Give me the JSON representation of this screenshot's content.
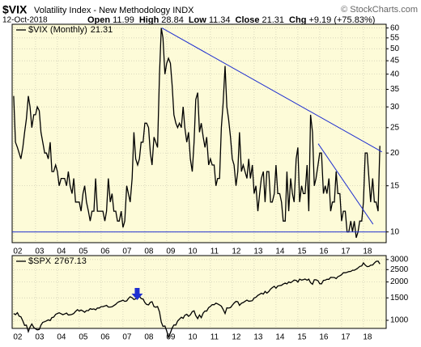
{
  "header": {
    "symbol": "$VIX",
    "name": "Volatility Index - New Methodology INDX",
    "copyright": "© StockCharts.com",
    "date": "12-Oct-2018",
    "quote": [
      {
        "label": "Open",
        "value": 11.99
      },
      {
        "label": "High",
        "value": 28.84
      },
      {
        "label": "Low",
        "value": 11.34
      },
      {
        "label": "Close",
        "value": 21.31
      },
      {
        "label": "Chg",
        "value": "+9.19 (+75.83%)"
      }
    ]
  },
  "chart_data": {
    "type": "line",
    "log_scale": true,
    "grid": true,
    "xlim": [
      2001.93,
      2019.04
    ],
    "xticks": [
      {
        "value": 2002,
        "label": "02"
      },
      {
        "value": 2003,
        "label": "03"
      },
      {
        "value": 2004,
        "label": "04"
      },
      {
        "value": 2005,
        "label": "05"
      },
      {
        "value": 2006,
        "label": "06"
      },
      {
        "value": 2007,
        "label": "07"
      },
      {
        "value": 2008,
        "label": "08"
      },
      {
        "value": 2009,
        "label": "09"
      },
      {
        "value": 2010,
        "label": "10"
      },
      {
        "value": 2011,
        "label": "11"
      },
      {
        "value": 2012,
        "label": "12"
      },
      {
        "value": 2013,
        "label": "13"
      },
      {
        "value": 2014,
        "label": "14"
      },
      {
        "value": 2015,
        "label": "15"
      },
      {
        "value": 2016,
        "label": "16"
      },
      {
        "value": 2017,
        "label": "17"
      },
      {
        "value": 2018,
        "label": "18"
      }
    ],
    "ylim": [
      9.1,
      62
    ],
    "yticks": [
      10,
      15,
      20,
      25,
      30,
      35,
      40,
      45,
      50,
      55,
      60
    ],
    "y2lim": [
      864,
      3220
    ],
    "y2ticks": [
      1000,
      1500,
      2000,
      2500,
      3000
    ],
    "x": [
      2002,
      2002.08,
      2002.17,
      2002.25,
      2002.33,
      2002.42,
      2002.5,
      2002.58,
      2002.67,
      2002.75,
      2002.83,
      2002.92,
      2003,
      2003.08,
      2003.17,
      2003.25,
      2003.33,
      2003.42,
      2003.5,
      2003.58,
      2003.67,
      2003.75,
      2003.83,
      2003.92,
      2004,
      2004.08,
      2004.17,
      2004.25,
      2004.33,
      2004.42,
      2004.5,
      2004.58,
      2004.67,
      2004.75,
      2004.83,
      2004.92,
      2005,
      2005.08,
      2005.17,
      2005.25,
      2005.33,
      2005.42,
      2005.5,
      2005.58,
      2005.67,
      2005.75,
      2005.83,
      2005.92,
      2006,
      2006.08,
      2006.17,
      2006.25,
      2006.33,
      2006.42,
      2006.5,
      2006.58,
      2006.67,
      2006.75,
      2006.83,
      2006.92,
      2007,
      2007.08,
      2007.17,
      2007.25,
      2007.33,
      2007.42,
      2007.5,
      2007.58,
      2007.67,
      2007.75,
      2007.83,
      2007.92,
      2008,
      2008.08,
      2008.17,
      2008.25,
      2008.33,
      2008.42,
      2008.5,
      2008.58,
      2008.67,
      2008.75,
      2008.83,
      2008.92,
      2009,
      2009.08,
      2009.17,
      2009.25,
      2009.33,
      2009.42,
      2009.5,
      2009.58,
      2009.67,
      2009.75,
      2009.83,
      2009.92,
      2010,
      2010.08,
      2010.17,
      2010.25,
      2010.33,
      2010.42,
      2010.5,
      2010.58,
      2010.67,
      2010.75,
      2010.83,
      2010.92,
      2011,
      2011.08,
      2011.17,
      2011.25,
      2011.33,
      2011.42,
      2011.5,
      2011.58,
      2011.67,
      2011.75,
      2011.83,
      2011.92,
      2012,
      2012.08,
      2012.17,
      2012.25,
      2012.33,
      2012.42,
      2012.5,
      2012.58,
      2012.67,
      2012.75,
      2012.83,
      2012.92,
      2013,
      2013.08,
      2013.17,
      2013.25,
      2013.33,
      2013.42,
      2013.5,
      2013.58,
      2013.67,
      2013.75,
      2013.83,
      2013.92,
      2014,
      2014.08,
      2014.17,
      2014.25,
      2014.33,
      2014.42,
      2014.5,
      2014.58,
      2014.67,
      2014.75,
      2014.83,
      2014.92,
      2015,
      2015.08,
      2015.17,
      2015.25,
      2015.33,
      2015.42,
      2015.5,
      2015.58,
      2015.67,
      2015.75,
      2015.83,
      2015.92,
      2016,
      2016.08,
      2016.17,
      2016.25,
      2016.33,
      2016.42,
      2016.5,
      2016.58,
      2016.67,
      2016.75,
      2016.83,
      2016.92,
      2017,
      2017.08,
      2017.17,
      2017.25,
      2017.33,
      2017.42,
      2017.5,
      2017.58,
      2017.67,
      2017.75,
      2017.83,
      2017.92,
      2018,
      2018.08,
      2018.17,
      2018.25,
      2018.33,
      2018.42,
      2018.5,
      2018.58,
      2018.67,
      2018.75
    ],
    "series": [
      {
        "name": "$VIX (Monthly)",
        "color": "#000000",
        "values": [
          33,
          22,
          21,
          20,
          19,
          21,
          24,
          27,
          33,
          30,
          25,
          28,
          28,
          30,
          29,
          24,
          22,
          20,
          20,
          19,
          22,
          17,
          17,
          18,
          17,
          15,
          16,
          16,
          16,
          15,
          17,
          15,
          14,
          16,
          13,
          13,
          13,
          12,
          14,
          15,
          13,
          12,
          11,
          12,
          12,
          16,
          12,
          12,
          12,
          12,
          11,
          12,
          16,
          13,
          14,
          12,
          12,
          11,
          11,
          12,
          10.4,
          11,
          15,
          14,
          13,
          16,
          24,
          19,
          18,
          19,
          22,
          22,
          26,
          26,
          25,
          20,
          18,
          23,
          22,
          21,
          40,
          60,
          55,
          40,
          44,
          46,
          44,
          36,
          28,
          26,
          25,
          26,
          25,
          30,
          25,
          22,
          24,
          19,
          17,
          22,
          32,
          34,
          24,
          26,
          23,
          21,
          23,
          18,
          19,
          18,
          18,
          15,
          16,
          16,
          25,
          31,
          43,
          30,
          27,
          23,
          19,
          18,
          15,
          17,
          24,
          17,
          18,
          17,
          16,
          19,
          16,
          18,
          14,
          15,
          12,
          14,
          16,
          17,
          13,
          17,
          17,
          13,
          13,
          14,
          18,
          14,
          14,
          13,
          11,
          11,
          17,
          12,
          16,
          14,
          13,
          19,
          21,
          13,
          15,
          14,
          14,
          18,
          12,
          28,
          24,
          15,
          16,
          18,
          20,
          20,
          14,
          15,
          14,
          16,
          12,
          13,
          13,
          17,
          14,
          14,
          11,
          12,
          12,
          10,
          10,
          11,
          10,
          11,
          9.5,
          10,
          11,
          11,
          13,
          20,
          20,
          16,
          13,
          16,
          13,
          13,
          12,
          21.31
        ]
      },
      {
        "name": "$SPX",
        "color": "#000000",
        "axis": "y2",
        "values": [
          1130,
          1107,
          1147,
          1077,
          1067,
          990,
          912,
          916,
          815,
          886,
          936,
          880,
          856,
          841,
          848,
          917,
          964,
          975,
          990,
          1008,
          996,
          1051,
          1058,
          1112,
          1131,
          1145,
          1126,
          1107,
          1121,
          1141,
          1102,
          1104,
          1115,
          1130,
          1174,
          1212,
          1181,
          1204,
          1181,
          1157,
          1192,
          1191,
          1234,
          1220,
          1229,
          1207,
          1249,
          1248,
          1280,
          1281,
          1295,
          1311,
          1270,
          1270,
          1277,
          1304,
          1336,
          1378,
          1401,
          1418,
          1438,
          1407,
          1421,
          1482,
          1531,
          1503,
          1455,
          1474,
          1527,
          1549,
          1481,
          1468,
          1379,
          1331,
          1323,
          1386,
          1400,
          1280,
          1267,
          1283,
          1166,
          969,
          896,
          903,
          826,
          735,
          798,
          873,
          919,
          919,
          987,
          1021,
          1057,
          1036,
          1096,
          1115,
          1074,
          1104,
          1169,
          1187,
          1089,
          1031,
          1102,
          1049,
          1141,
          1183,
          1181,
          1258,
          1286,
          1327,
          1326,
          1364,
          1345,
          1321,
          1292,
          1219,
          1131,
          1253,
          1247,
          1258,
          1312,
          1366,
          1408,
          1398,
          1310,
          1362,
          1379,
          1407,
          1441,
          1412,
          1416,
          1426,
          1498,
          1515,
          1569,
          1598,
          1631,
          1606,
          1686,
          1633,
          1682,
          1757,
          1806,
          1848,
          1783,
          1859,
          1872,
          1884,
          1924,
          1960,
          1931,
          2003,
          1972,
          2018,
          2068,
          2059,
          1995,
          2105,
          2068,
          2086,
          2107,
          2063,
          2104,
          1972,
          1920,
          2079,
          2080,
          2044,
          1940,
          1932,
          2060,
          2065,
          2097,
          2099,
          2174,
          2171,
          2168,
          2126,
          2199,
          2239,
          2279,
          2364,
          2363,
          2384,
          2412,
          2423,
          2470,
          2472,
          2519,
          2575,
          2648,
          2674,
          2824,
          2714,
          2641,
          2648,
          2705,
          2718,
          2816,
          2902,
          2914,
          2767.13
        ]
      }
    ],
    "trendlines": [
      {
        "color": "#1f2fd0",
        "x": [
          2008.78,
          2018.85
        ],
        "values": [
          60,
          20.2
        ]
      },
      {
        "color": "#1f2fd0",
        "x": [
          2015.93,
          2018.44
        ],
        "values": [
          21.7,
          10.7
        ]
      }
    ],
    "hline": 10,
    "hline_color": "#1f2fd0",
    "arrow_x": 2007.65,
    "arrow_color": "#1f2fd0"
  }
}
